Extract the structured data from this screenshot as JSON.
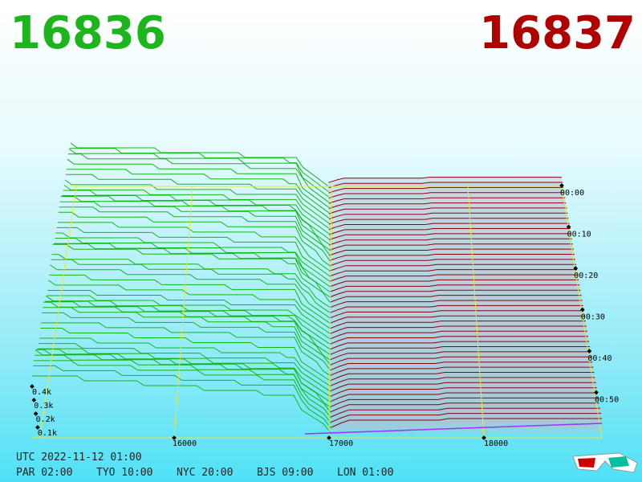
{
  "header": {
    "bid_price": "16836",
    "ask_price": "16837"
  },
  "price_axis": {
    "labels": [
      "16000",
      "17000",
      "18000"
    ]
  },
  "depth_axis": {
    "labels": [
      "0.4k",
      "0.3k",
      "0.2k",
      "0.1k"
    ]
  },
  "time_axis": {
    "labels": [
      "00:00",
      "00:10",
      "00:20",
      "00:30",
      "00:40",
      "00:50"
    ]
  },
  "footer": {
    "utc": "UTC 2022-11-12 01:00",
    "cities": [
      "PAR 02:00",
      "TYO 10:00",
      "NYC 20:00",
      "BJS 09:00",
      "LON 01:00"
    ]
  }
}
